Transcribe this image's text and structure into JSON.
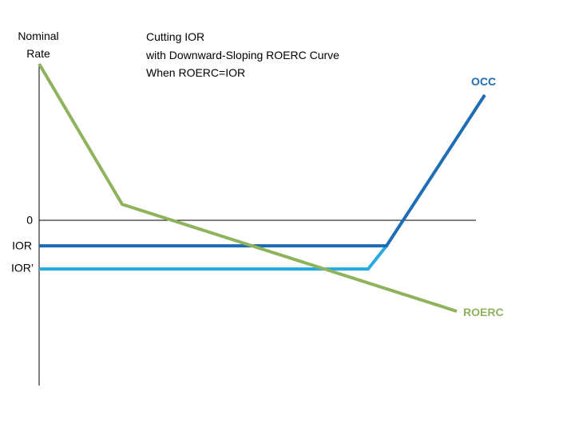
{
  "axis": {
    "y_label_lines": [
      "Nominal",
      "Rate"
    ],
    "zero_label": "0",
    "ior_label": "IOR",
    "ior_prime_label": "IOR’"
  },
  "title_lines": [
    "Cutting IOR",
    "with Downward-Sloping ROERC Curve",
    "When ROERC=IOR"
  ],
  "curves": {
    "occ": "OCC",
    "roerc": "ROERC"
  }
}
